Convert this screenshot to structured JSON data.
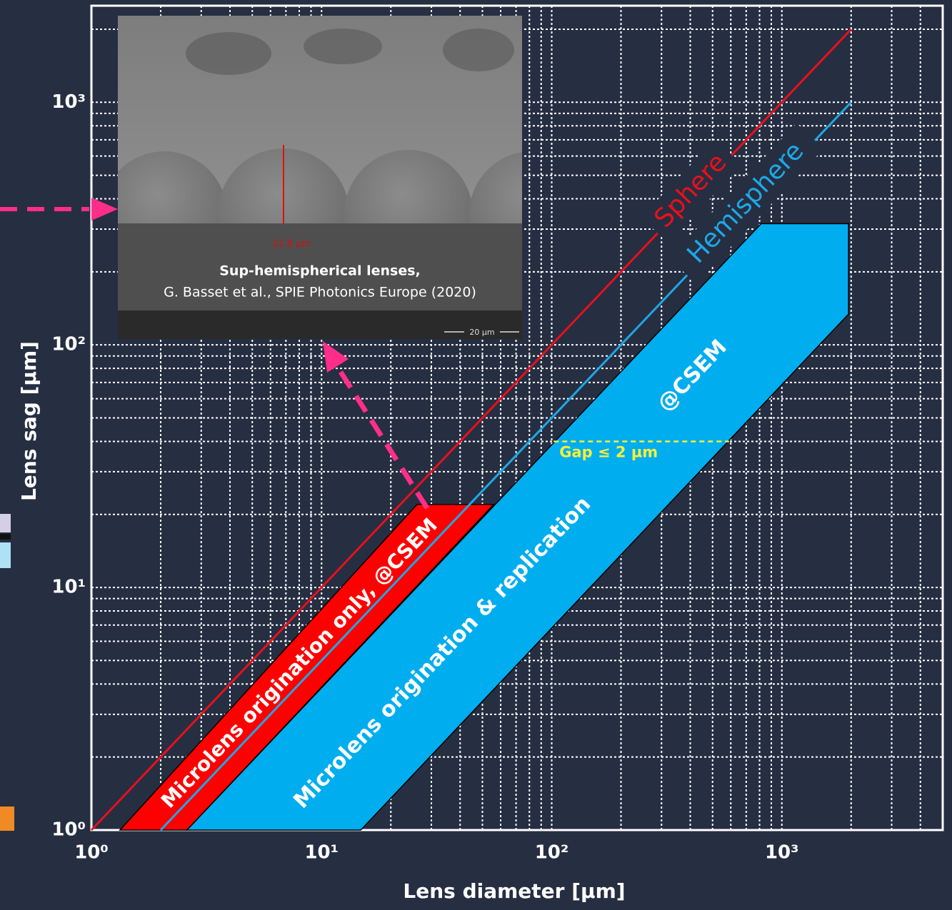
{
  "chart_data": {
    "type": "line",
    "xlabel": "Lens diameter [µm]",
    "ylabel": "Lens sag [µm]",
    "xscale": "log",
    "yscale": "log",
    "grid": true,
    "minor_grid": true,
    "xlim": [
      1,
      5000
    ],
    "ylim": [
      1,
      2500
    ],
    "xticks": [
      {
        "value": 1,
        "label": "10⁰"
      },
      {
        "value": 10,
        "label": "10¹"
      },
      {
        "value": 100,
        "label": "10²"
      },
      {
        "value": 1000,
        "label": "10³"
      }
    ],
    "yticks": [
      {
        "value": 1,
        "label": "10⁰"
      },
      {
        "value": 10,
        "label": "10¹"
      },
      {
        "value": 100,
        "label": "10²"
      },
      {
        "value": 1000,
        "label": "10³"
      }
    ],
    "series": [
      {
        "name": "Sphere",
        "color": "#e8101c",
        "x": [
          1,
          2000
        ],
        "values": [
          1,
          2000
        ]
      },
      {
        "name": "Hemisphere",
        "color": "#1ea8e6",
        "x": [
          2,
          2000
        ],
        "values": [
          1,
          1000
        ]
      }
    ],
    "regions": [
      {
        "name": "Microlens origination only, @CSEM",
        "color": "#ff0000",
        "x": [
          1.33,
          26,
          56,
          2.6
        ],
        "values": [
          1,
          22,
          22,
          1
        ]
      },
      {
        "name": "Microlens origination & replication",
        "color": "#00adef",
        "x": [
          2.6,
          813,
          1950,
          1950,
          14.8
        ],
        "values": [
          1,
          316,
          316,
          134,
          1
        ]
      }
    ],
    "annotations": [
      {
        "text": "@CSEM"
      }
    ],
    "gap_line": {
      "label": "Gap ≤ 2 µm",
      "color": "#f5f03a",
      "x": [
        102,
        589
      ],
      "y": 40
    },
    "inset": {
      "measure": "21.8 µm",
      "caption_title": "Sup-hemispherical lenses,",
      "caption": "G. Basset et al., SPIE Photonics Europe (2020)",
      "scale": "20 µm"
    }
  }
}
